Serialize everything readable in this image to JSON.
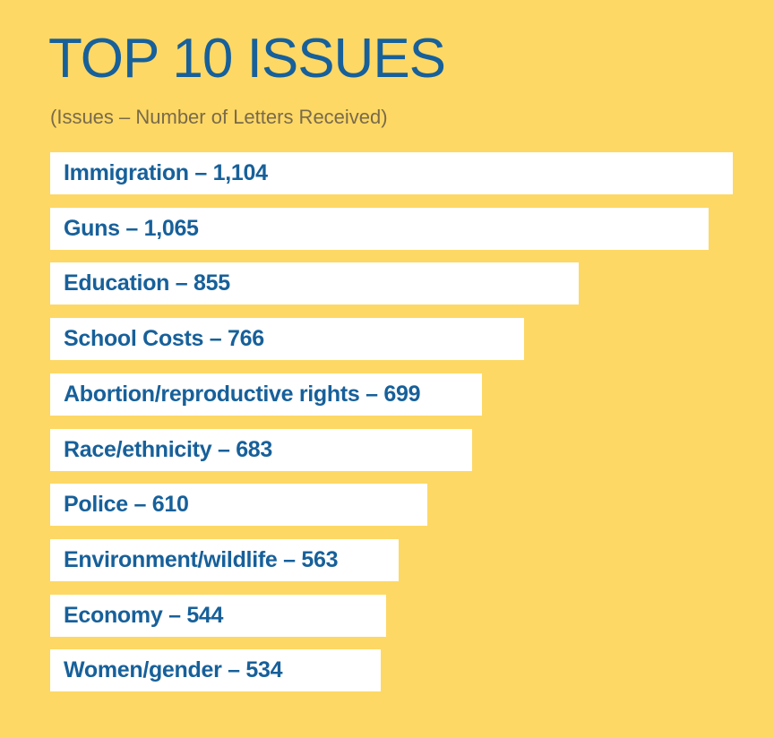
{
  "chart_data": {
    "type": "bar",
    "orientation": "horizontal",
    "title": "TOP 10 ISSUES",
    "subtitle": "(Issues – Number of Letters Received)",
    "categories": [
      "Immigration",
      "Guns",
      "Education",
      "School Costs",
      "Abortion/reproductive rights",
      "Race/ethnicity",
      "Police",
      "Environment/wildlife",
      "Economy",
      "Women/gender"
    ],
    "values": [
      1104,
      1065,
      855,
      766,
      699,
      683,
      610,
      563,
      544,
      534
    ],
    "data_labels": [
      "Immigration – 1,104",
      "Guns – 1,065",
      "Education – 855",
      "School Costs – 766",
      "Abortion/reproductive rights – 699",
      "Race/ethnicity – 683",
      "Police – 610",
      "Environment/wildlife – 563",
      "Economy – 544",
      "Women/gender – 534"
    ],
    "xlim": [
      0,
      1104
    ],
    "grid": false,
    "colors": {
      "background": "#fdd865",
      "bar": "#ffffff",
      "text": "#17609a",
      "subtitle": "#7a6a4a"
    }
  }
}
